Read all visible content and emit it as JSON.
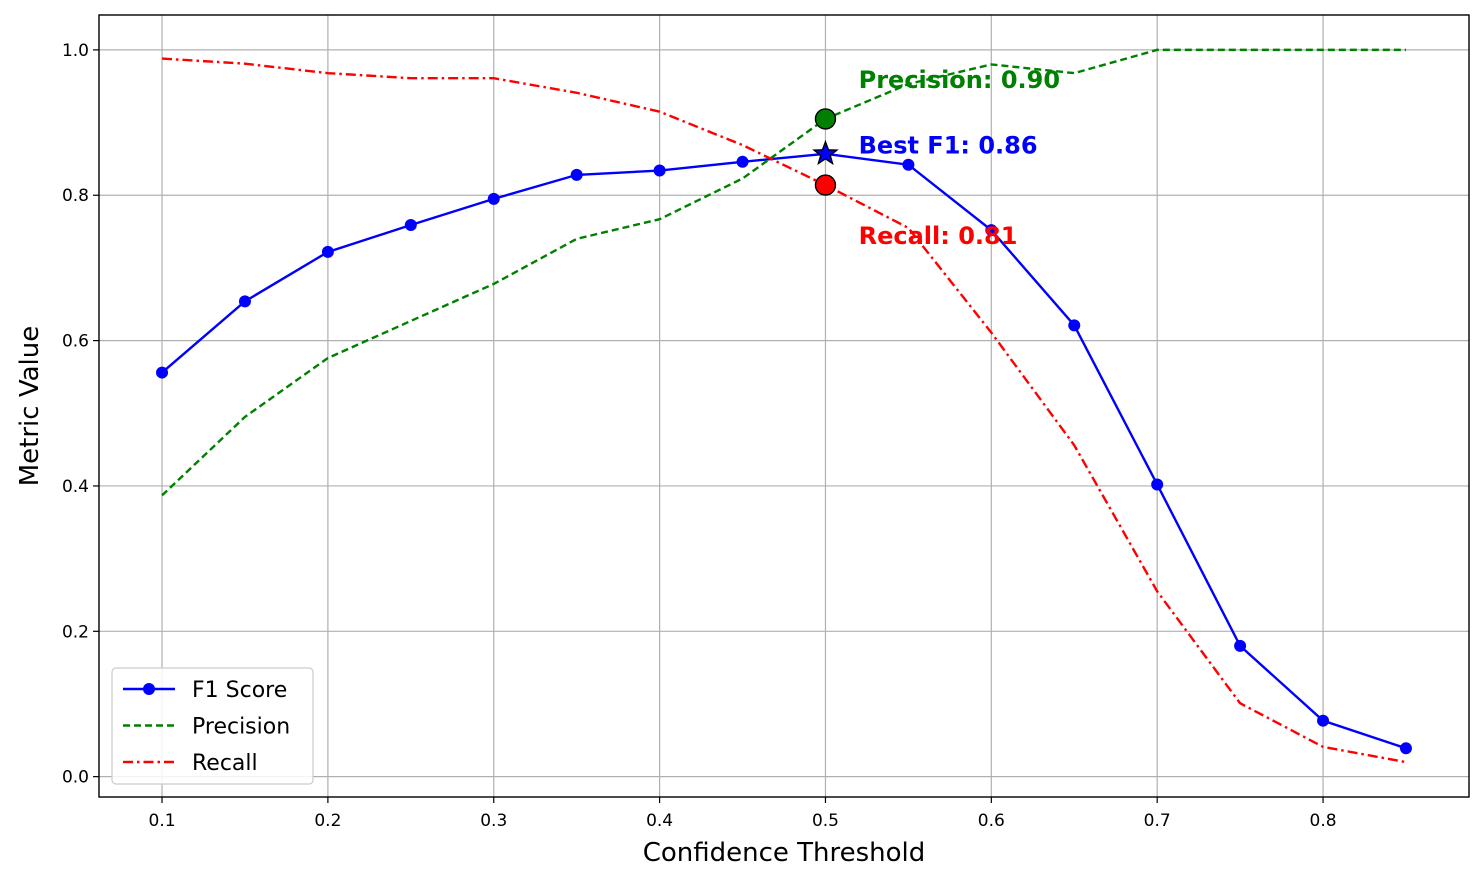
{
  "chart_data": {
    "type": "line",
    "xlabel": "Confidence Threshold",
    "ylabel": "Metric Value",
    "xlim": [
      0.062,
      0.888
    ],
    "ylim": [
      -0.028,
      1.048
    ],
    "grid": true,
    "legend_position": "lower-left",
    "x_ticks": [
      0.1,
      0.2,
      0.3,
      0.4,
      0.5,
      0.6,
      0.7,
      0.8
    ],
    "x_tick_labels": [
      "0.1",
      "0.2",
      "0.3",
      "0.4",
      "0.5",
      "0.6",
      "0.7",
      "0.8"
    ],
    "y_ticks": [
      0.0,
      0.2,
      0.4,
      0.6,
      0.8,
      1.0
    ],
    "y_tick_labels": [
      "0.0",
      "0.2",
      "0.4",
      "0.6",
      "0.8",
      "1.0"
    ],
    "x": [
      0.1,
      0.15,
      0.2,
      0.25,
      0.3,
      0.35,
      0.4,
      0.45,
      0.5,
      0.55,
      0.6,
      0.65,
      0.7,
      0.75,
      0.8,
      0.85
    ],
    "series": [
      {
        "name": "F1 Score",
        "color": "#0000ff",
        "style": "solid",
        "marker": "circle",
        "values": [
          0.556,
          0.654,
          0.722,
          0.759,
          0.795,
          0.828,
          0.834,
          0.846,
          0.857,
          0.842,
          0.752,
          0.621,
          0.402,
          0.18,
          0.077,
          0.039
        ]
      },
      {
        "name": "Precision",
        "color": "#008000",
        "style": "dashed",
        "marker": "none",
        "values": [
          0.387,
          0.495,
          0.576,
          0.627,
          0.678,
          0.74,
          0.767,
          0.823,
          0.905,
          0.953,
          0.98,
          0.968,
          1.0,
          1.0,
          1.0,
          1.0
        ]
      },
      {
        "name": "Recall",
        "color": "#ff0000",
        "style": "dashdot",
        "marker": "none",
        "values": [
          0.988,
          0.981,
          0.968,
          0.961,
          0.961,
          0.941,
          0.915,
          0.869,
          0.814,
          0.755,
          0.611,
          0.456,
          0.255,
          0.101,
          0.041,
          0.02
        ]
      }
    ],
    "highlights": [
      {
        "series": "Precision",
        "x": 0.5,
        "y": 0.905,
        "marker": "circle",
        "color": "#008000"
      },
      {
        "series": "F1 Score",
        "x": 0.5,
        "y": 0.857,
        "marker": "star",
        "color": "#0000ff"
      },
      {
        "series": "Recall",
        "x": 0.5,
        "y": 0.814,
        "marker": "circle",
        "color": "#ff0000"
      }
    ],
    "annotations": [
      {
        "text": "Precision: 0.90",
        "x": 0.52,
        "y": 0.96,
        "color": "#008000"
      },
      {
        "text": "Best F1: 0.86",
        "x": 0.52,
        "y": 0.87,
        "color": "#0000ff"
      },
      {
        "text": "Recall: 0.81",
        "x": 0.52,
        "y": 0.745,
        "color": "#ff0000"
      }
    ]
  }
}
